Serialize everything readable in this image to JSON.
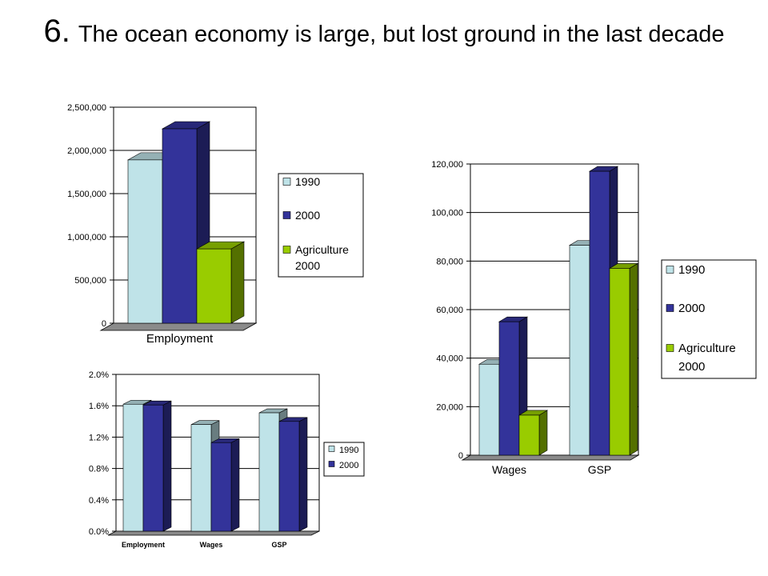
{
  "slide": {
    "number": "6.",
    "title": "The ocean economy is large, but lost ground in the last decade"
  },
  "colors": {
    "s1990": "#BFE3E8",
    "s2000": "#33339A",
    "agri": "#99CC00"
  },
  "chart_data": [
    {
      "id": "employment",
      "type": "bar",
      "title": "",
      "categories": [
        "Employment"
      ],
      "series": [
        {
          "name": "1990",
          "values": [
            1890000
          ]
        },
        {
          "name": "2000",
          "values": [
            2250000
          ]
        },
        {
          "name": "Agriculture 2000",
          "values": [
            860000
          ]
        }
      ],
      "yticks": [
        "0",
        "500,000",
        "1,000,000",
        "1,500,000",
        "2,000,000",
        "2,500,000"
      ],
      "ylim": [
        0,
        2500000
      ],
      "grid": true,
      "legend": [
        "1990",
        "2000",
        "Agriculture",
        "2000"
      ],
      "legend_position": "right"
    },
    {
      "id": "wages-gsp",
      "type": "bar",
      "title": "",
      "categories": [
        "Wages",
        "GSP"
      ],
      "series": [
        {
          "name": "1990",
          "values": [
            37500,
            86500
          ]
        },
        {
          "name": "2000",
          "values": [
            55000,
            117000
          ]
        },
        {
          "name": "Agriculture 2000",
          "values": [
            16500,
            77000
          ]
        }
      ],
      "yticks": [
        "0",
        "20,000",
        "40,000",
        "60,000",
        "80,000",
        "100,000",
        "120,000"
      ],
      "ylim": [
        0,
        120000
      ],
      "grid": true,
      "legend": [
        "1990",
        "2000",
        "Agriculture",
        "2000"
      ],
      "legend_position": "right"
    },
    {
      "id": "share",
      "type": "bar",
      "title": "",
      "categories": [
        "Employment",
        "Wages",
        "GSP"
      ],
      "series": [
        {
          "name": "1990",
          "values": [
            1.62,
            1.36,
            1.51
          ]
        },
        {
          "name": "2000",
          "values": [
            1.61,
            1.13,
            1.4
          ]
        }
      ],
      "yticks": [
        "0.0%",
        "0.4%",
        "0.8%",
        "1.2%",
        "1.6%",
        "2.0%"
      ],
      "ylim": [
        0,
        2.0
      ],
      "grid": true,
      "legend": [
        "1990",
        "2000"
      ],
      "legend_position": "right"
    }
  ]
}
